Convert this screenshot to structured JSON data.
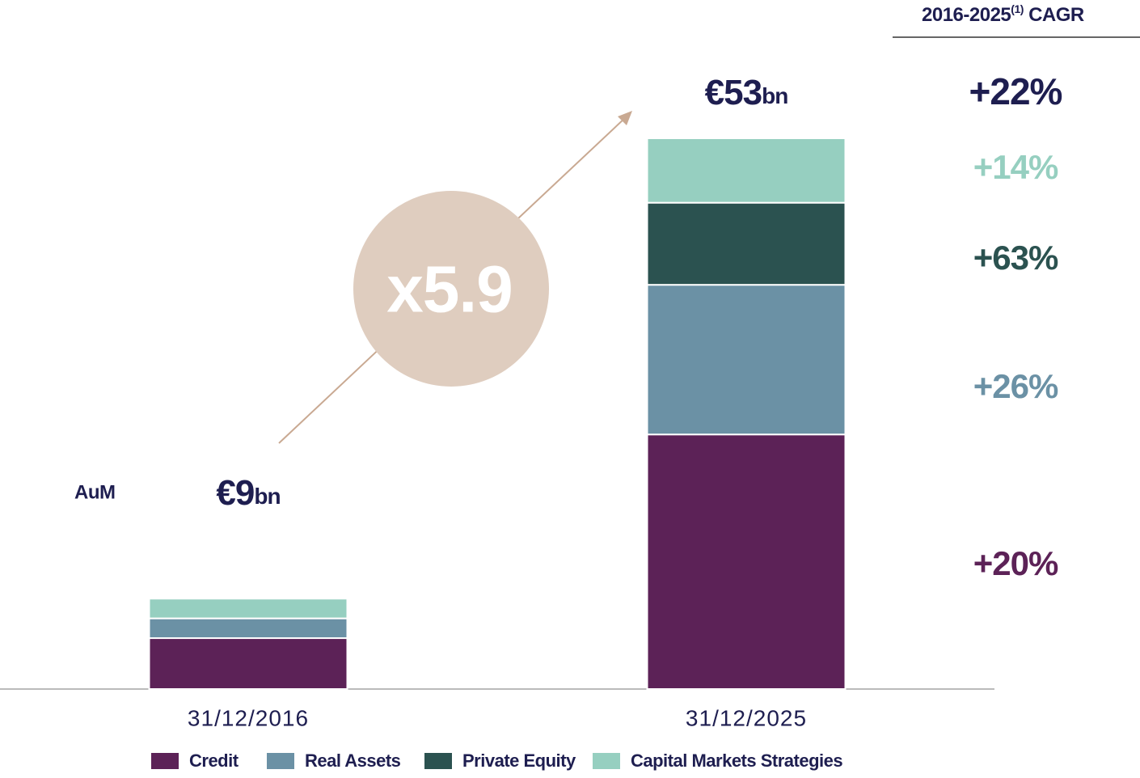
{
  "chart_data": {
    "type": "stacked_bar",
    "categories": [
      "31/12/2016",
      "31/12/2025"
    ],
    "series": [
      {
        "name": "Credit",
        "color": "#5c2257",
        "values": [
          4.9,
          24.5
        ],
        "cagr": {
          "value": 20,
          "label": "+20%"
        }
      },
      {
        "name": "Real Assets",
        "color": "#6b91a5",
        "values": [
          1.9,
          14.4
        ],
        "cagr": {
          "value": 26,
          "label": "+26%"
        }
      },
      {
        "name": "Private Equity",
        "color": "#2b5250",
        "values": [
          0,
          7.9
        ],
        "cagr": {
          "value": 63,
          "label": "+63%"
        }
      },
      {
        "name": "Capital Markets Strategies",
        "color": "#96cfc0",
        "values": [
          1.9,
          6.2
        ],
        "cagr": {
          "value": 14,
          "label": "+14%"
        }
      }
    ],
    "totals": [
      {
        "value": 9,
        "label": "€9",
        "unit": "bn"
      },
      {
        "value": 53,
        "label": "€53",
        "unit": "bn"
      }
    ],
    "total_cagr": {
      "value": 22,
      "label": "+22%"
    },
    "total_color": "#1e1e50",
    "multiplier": {
      "value": 5.9,
      "label": "x5.9"
    },
    "y_label": "AuM",
    "cagr_header": {
      "text": "2016-2025",
      "note": "(1)",
      "suffix": " CAGR"
    }
  }
}
